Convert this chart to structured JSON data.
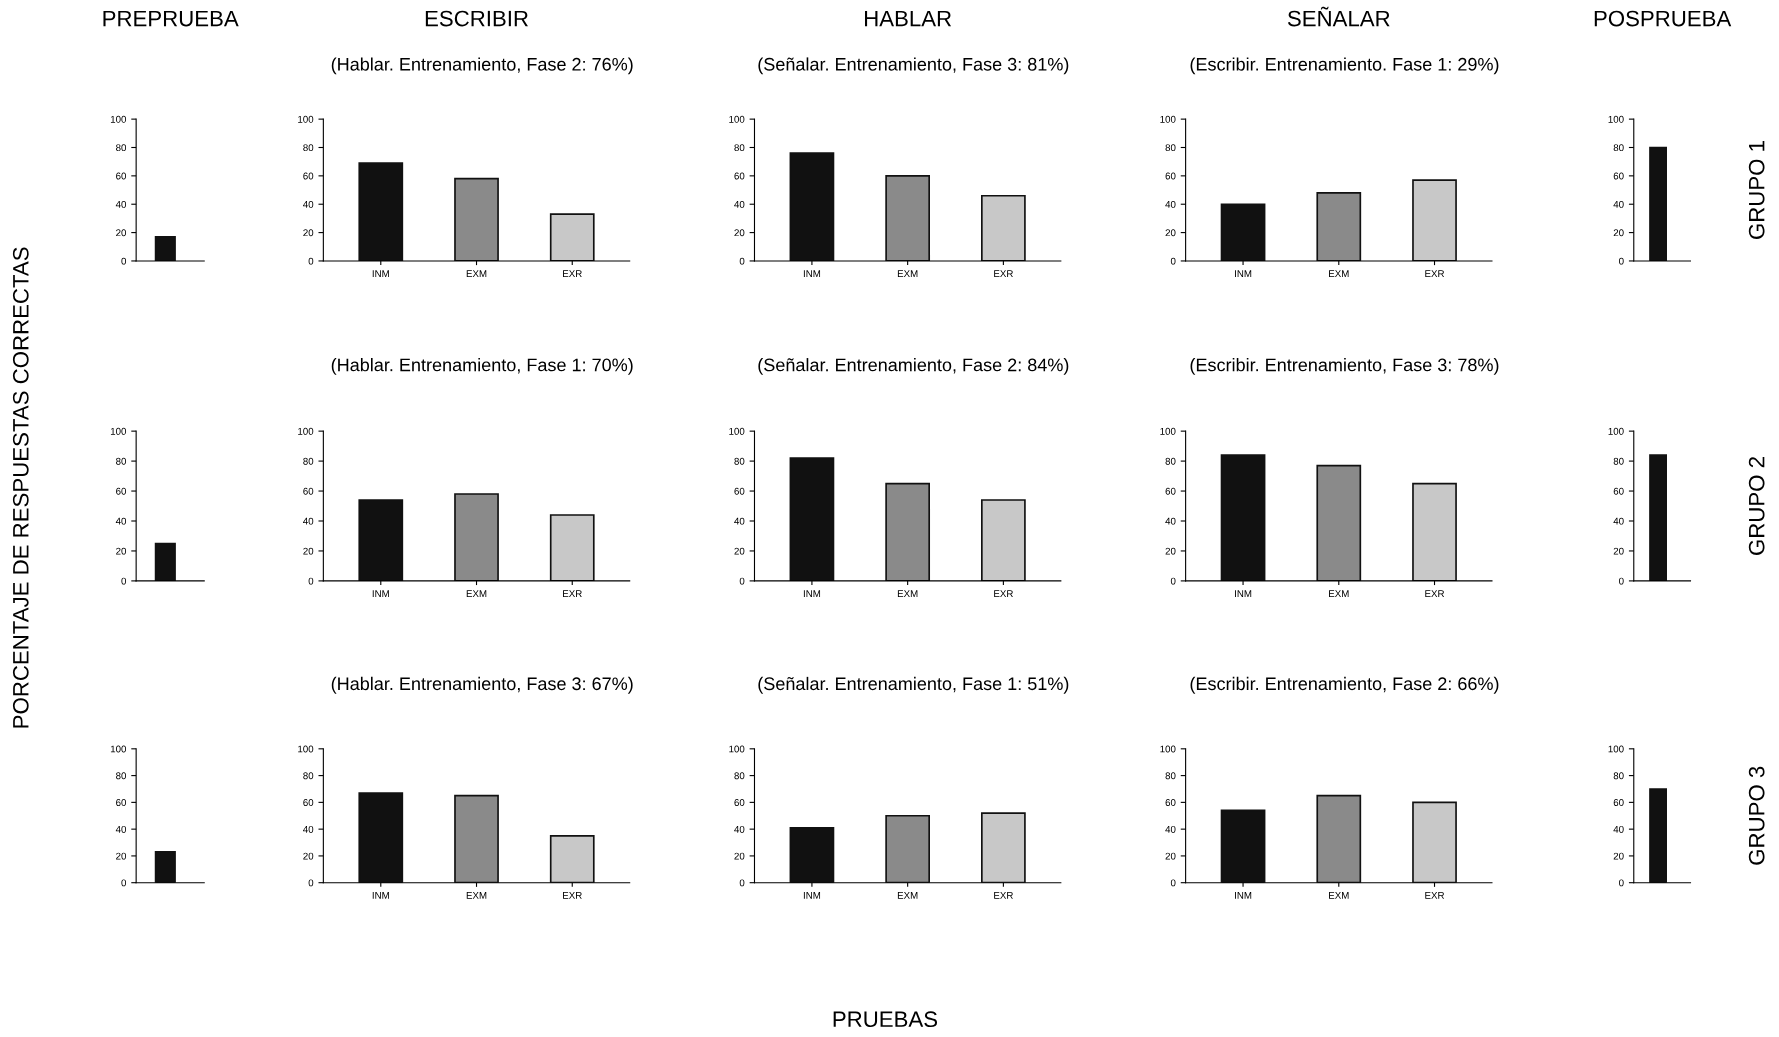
{
  "chart_data": [
    {
      "type": "bar",
      "title": "PREPRUEBA",
      "categories": [
        null
      ],
      "values": [
        17
      ],
      "colors": [
        "#111111"
      ],
      "ylim": [
        0,
        100
      ],
      "yticks": [
        0,
        20,
        40,
        60,
        80,
        100
      ]
    },
    {
      "type": "bar",
      "title": "ESCRIBIR",
      "subtitle": "(Hablar. Entrenamiento, Fase 2: 76%)",
      "categories": [
        "INM",
        "EXM",
        "EXR"
      ],
      "values": [
        69,
        58,
        33
      ],
      "colors": [
        "#111111",
        "#8a8a8a",
        "#c8c8c8"
      ],
      "ylim": [
        0,
        100
      ],
      "yticks": [
        0,
        20,
        40,
        60,
        80,
        100
      ]
    },
    {
      "type": "bar",
      "title": "HABLAR",
      "subtitle": "(Señalar. Entrenamiento, Fase 3: 81%)",
      "categories": [
        "INM",
        "EXM",
        "EXR"
      ],
      "values": [
        76,
        60,
        46
      ],
      "colors": [
        "#111111",
        "#8a8a8a",
        "#c8c8c8"
      ],
      "ylim": [
        0,
        100
      ],
      "yticks": [
        0,
        20,
        40,
        60,
        80,
        100
      ]
    },
    {
      "type": "bar",
      "title": "SEÑALAR",
      "subtitle": "(Escribir. Entrenamiento. Fase 1: 29%)",
      "categories": [
        "INM",
        "EXM",
        "EXR"
      ],
      "values": [
        40,
        48,
        57
      ],
      "colors": [
        "#111111",
        "#8a8a8a",
        "#c8c8c8"
      ],
      "ylim": [
        0,
        100
      ],
      "yticks": [
        0,
        20,
        40,
        60,
        80,
        100
      ]
    },
    {
      "type": "bar",
      "title": "POSPRUEBA",
      "y2label": "GRUPO 1",
      "categories": [
        null
      ],
      "values": [
        80
      ],
      "colors": [
        "#111111"
      ],
      "ylim": [
        0,
        100
      ],
      "yticks": [
        0,
        20,
        40,
        60,
        80,
        100
      ]
    },
    {
      "type": "bar",
      "ylabel": "PORCENTAJE DE RESPUESTAS CORRECTAS",
      "categories": [
        null
      ],
      "values": [
        25
      ],
      "colors": [
        "#111111"
      ],
      "ylim": [
        0,
        100
      ],
      "yticks": [
        0,
        20,
        40,
        60,
        80,
        100
      ]
    },
    {
      "type": "bar",
      "subtitle": "(Hablar. Entrenamiento, Fase 1: 70%)",
      "categories": [
        "INM",
        "EXM",
        "EXR"
      ],
      "values": [
        54,
        58,
        44
      ],
      "colors": [
        "#111111",
        "#8a8a8a",
        "#c8c8c8"
      ],
      "ylim": [
        0,
        100
      ],
      "yticks": [
        0,
        20,
        40,
        60,
        80,
        100
      ]
    },
    {
      "type": "bar",
      "subtitle": "(Señalar. Entrenamiento, Fase 2: 84%)",
      "categories": [
        "INM",
        "EXM",
        "EXR"
      ],
      "values": [
        82,
        65,
        54
      ],
      "colors": [
        "#111111",
        "#8a8a8a",
        "#c8c8c8"
      ],
      "ylim": [
        0,
        100
      ],
      "yticks": [
        0,
        20,
        40,
        60,
        80,
        100
      ]
    },
    {
      "type": "bar",
      "subtitle": "(Escribir. Entrenamiento, Fase 3: 78%)",
      "categories": [
        "INM",
        "EXM",
        "EXR"
      ],
      "values": [
        84,
        77,
        65
      ],
      "colors": [
        "#111111",
        "#8a8a8a",
        "#c8c8c8"
      ],
      "ylim": [
        0,
        100
      ],
      "yticks": [
        0,
        20,
        40,
        60,
        80,
        100
      ]
    },
    {
      "type": "bar",
      "y2label": "GRUPO 2",
      "categories": [
        null
      ],
      "values": [
        84
      ],
      "colors": [
        "#111111"
      ],
      "ylim": [
        0,
        100
      ],
      "yticks": [
        0,
        20,
        40,
        60,
        80,
        100
      ]
    },
    {
      "type": "bar",
      "categories": [
        null
      ],
      "values": [
        23
      ],
      "colors": [
        "#111111"
      ],
      "ylim": [
        0,
        100
      ],
      "yticks": [
        0,
        20,
        40,
        60,
        80,
        100
      ]
    },
    {
      "type": "bar",
      "subtitle": "(Hablar. Entrenamiento, Fase 3: 67%)",
      "categories": [
        "INM",
        "EXM",
        "EXR"
      ],
      "values": [
        67,
        65,
        35
      ],
      "colors": [
        "#111111",
        "#8a8a8a",
        "#c8c8c8"
      ],
      "ylim": [
        0,
        100
      ],
      "yticks": [
        0,
        20,
        40,
        60,
        80,
        100
      ]
    },
    {
      "type": "bar",
      "subtitle": "(Señalar. Entrenamiento, Fase 1: 51%)",
      "xlabel": "PRUEBAS",
      "categories": [
        "INM",
        "EXM",
        "EXR"
      ],
      "values": [
        41,
        50,
        52
      ],
      "colors": [
        "#111111",
        "#8a8a8a",
        "#c8c8c8"
      ],
      "ylim": [
        0,
        100
      ],
      "yticks": [
        0,
        20,
        40,
        60,
        80,
        100
      ]
    },
    {
      "type": "bar",
      "subtitle": "(Escribir. Entrenamiento, Fase 2: 66%)",
      "categories": [
        "INM",
        "EXM",
        "EXR"
      ],
      "values": [
        54,
        65,
        60
      ],
      "colors": [
        "#111111",
        "#8a8a8a",
        "#c8c8c8"
      ],
      "ylim": [
        0,
        100
      ],
      "yticks": [
        0,
        20,
        40,
        60,
        80,
        100
      ]
    },
    {
      "type": "bar",
      "y2label": "GRUPO 3",
      "categories": [
        null
      ],
      "values": [
        70
      ],
      "colors": [
        "#111111"
      ],
      "ylim": [
        0,
        100
      ],
      "yticks": [
        0,
        20,
        40,
        60,
        80,
        100
      ]
    }
  ]
}
